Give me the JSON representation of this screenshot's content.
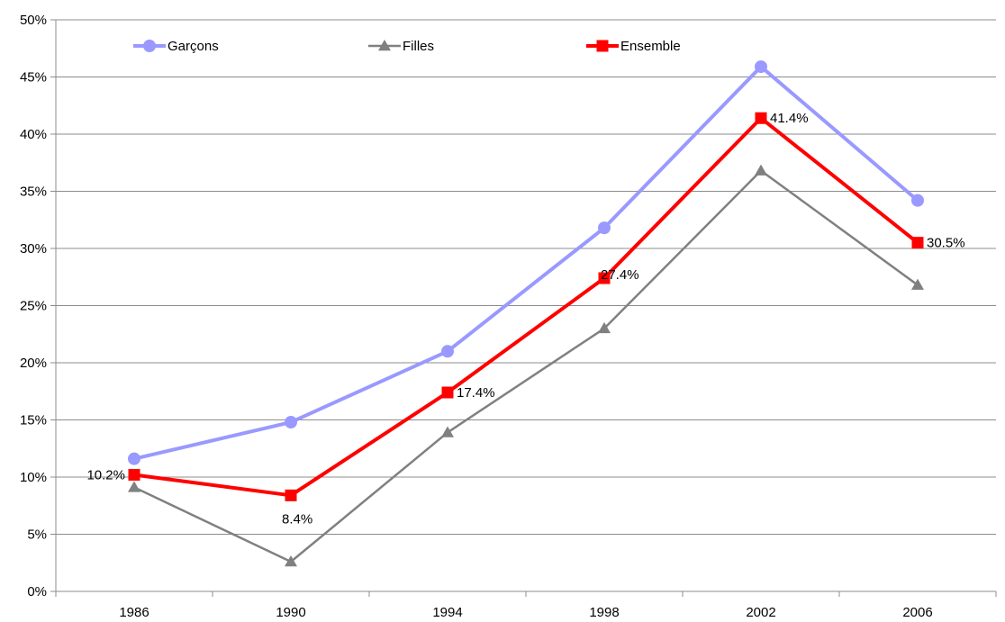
{
  "chart_data": {
    "type": "line",
    "categories": [
      "1986",
      "1990",
      "1994",
      "1998",
      "2002",
      "2006"
    ],
    "ylim": [
      0,
      50
    ],
    "y_ticks": [
      "0%",
      "5%",
      "10%",
      "15%",
      "20%",
      "25%",
      "30%",
      "35%",
      "40%",
      "45%",
      "50%"
    ],
    "grid": "horizontal",
    "legend_position": "top",
    "series": [
      {
        "name": "Garçons",
        "color": "#9999ff",
        "marker": "circle",
        "values": [
          11.6,
          14.8,
          21.0,
          31.8,
          45.9,
          34.2
        ]
      },
      {
        "name": "Filles",
        "color": "#808080",
        "marker": "triangle",
        "values": [
          9.1,
          2.6,
          13.9,
          23.0,
          36.8,
          26.8
        ]
      },
      {
        "name": "Ensemble",
        "color": "#ff0000",
        "marker": "square",
        "values": [
          10.2,
          8.4,
          17.4,
          27.4,
          41.4,
          30.5
        ],
        "data_labels": [
          "10.2%",
          "8.4%",
          "17.4%",
          "27.4%",
          "41.4%",
          "30.5%"
        ]
      }
    ]
  }
}
